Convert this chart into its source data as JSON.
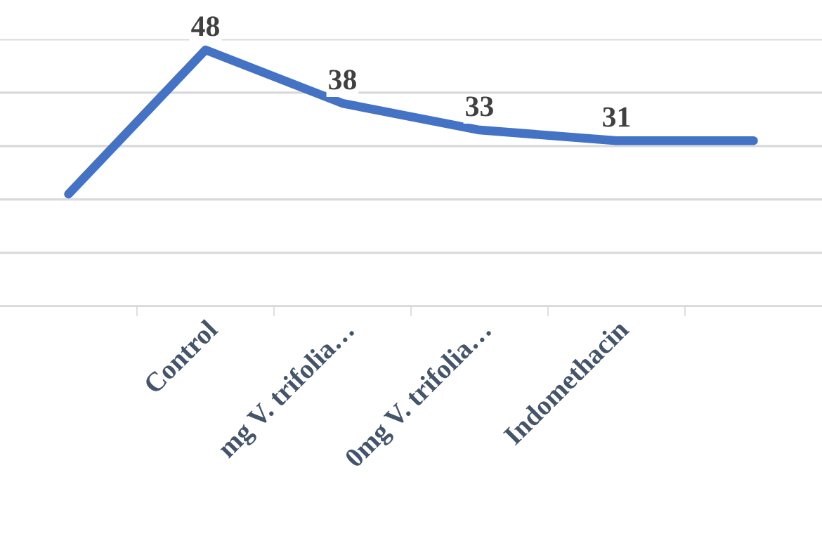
{
  "chart_data": {
    "type": "line",
    "categories": [
      null,
      "Control",
      "mg V. trifolia…",
      "0mg V. trifolia…",
      "Indomethacin",
      null
    ],
    "series": [
      {
        "color": "#4472c4",
        "values": [
          21,
          48,
          38,
          33,
          31,
          31
        ],
        "value_labels": [
          null,
          "48",
          "38",
          "33",
          "31",
          null
        ]
      }
    ],
    "ylim": [
      0,
      50
    ],
    "yticks": [
      {
        "value": 0,
        "label": null
      },
      {
        "value": 10,
        "label": null
      },
      {
        "value": 20,
        "label": null
      },
      {
        "value": 30,
        "label": null
      },
      {
        "value": 40,
        "label": null
      },
      {
        "value": 50,
        "label": null
      }
    ],
    "grid": "y",
    "marker": "none",
    "line_style": "solid",
    "legend": false
  }
}
